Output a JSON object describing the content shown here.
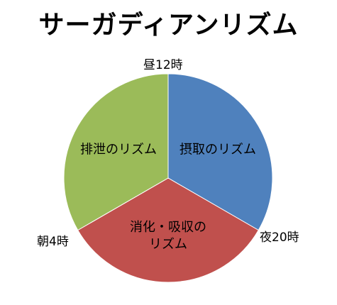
{
  "chart_data": {
    "type": "pie",
    "title": "サーガディアンリズム",
    "slices": [
      {
        "label": "摂取のリズム",
        "value": 8,
        "color": "#4F81BD",
        "label_lines": [
          "摂取のリズム"
        ]
      },
      {
        "label": "消化・吸収のリズム",
        "value": 8,
        "color": "#C0504D",
        "label_lines": [
          "消化・吸収の",
          "リズム"
        ]
      },
      {
        "label": "排泄のリズム",
        "value": 8,
        "color": "#9BBB59",
        "label_lines": [
          "排泄のリズム"
        ]
      }
    ],
    "boundary_labels": {
      "noon": "昼12時",
      "night": "夜20時",
      "morning": "朝4時"
    },
    "start": "昼12時",
    "direction": "clockwise",
    "legend": "none"
  }
}
